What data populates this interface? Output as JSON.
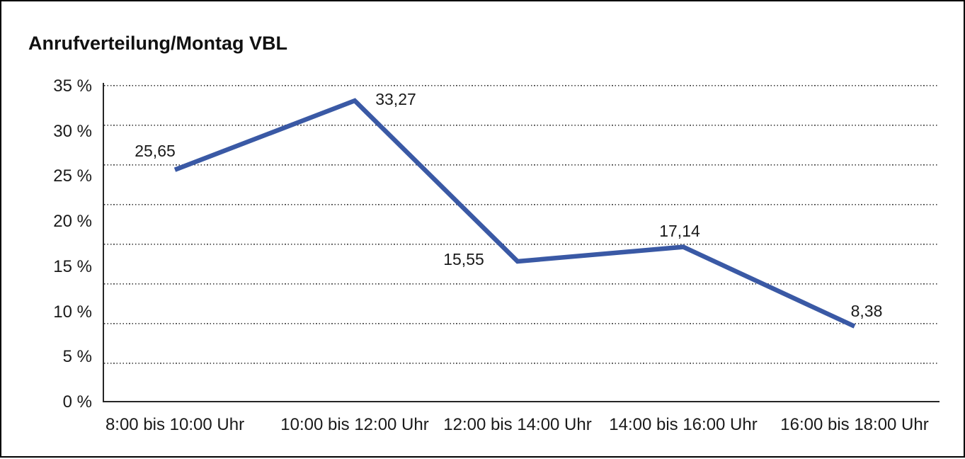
{
  "title": "Anrufverteilung/Montag VBL",
  "chart_data": {
    "type": "line",
    "title": "Anrufverteilung/Montag VBL",
    "categories": [
      "8:00 bis 10:00 Uhr",
      "10:00 bis 12:00 Uhr",
      "12:00 bis 14:00 Uhr",
      "14:00 bis 16:00 Uhr",
      "16:00 bis 18:00 Uhr"
    ],
    "values": [
      25.65,
      33.27,
      15.55,
      17.14,
      8.38
    ],
    "value_labels": [
      "25,65",
      "33,27",
      "15,55",
      "17,14",
      "8,38"
    ],
    "y_tick_labels": [
      "35 %",
      "30 %",
      "25 %",
      "20 %",
      "15 %",
      "10 %",
      "5 %",
      "0 %"
    ],
    "ylim": [
      0,
      35
    ],
    "xlabel": "",
    "ylabel": "",
    "grid": "horizontal-dotted",
    "legend": "none",
    "line_color": "#3a59a5",
    "axis_color": "#262626",
    "text_color": "#1a1a1a"
  }
}
